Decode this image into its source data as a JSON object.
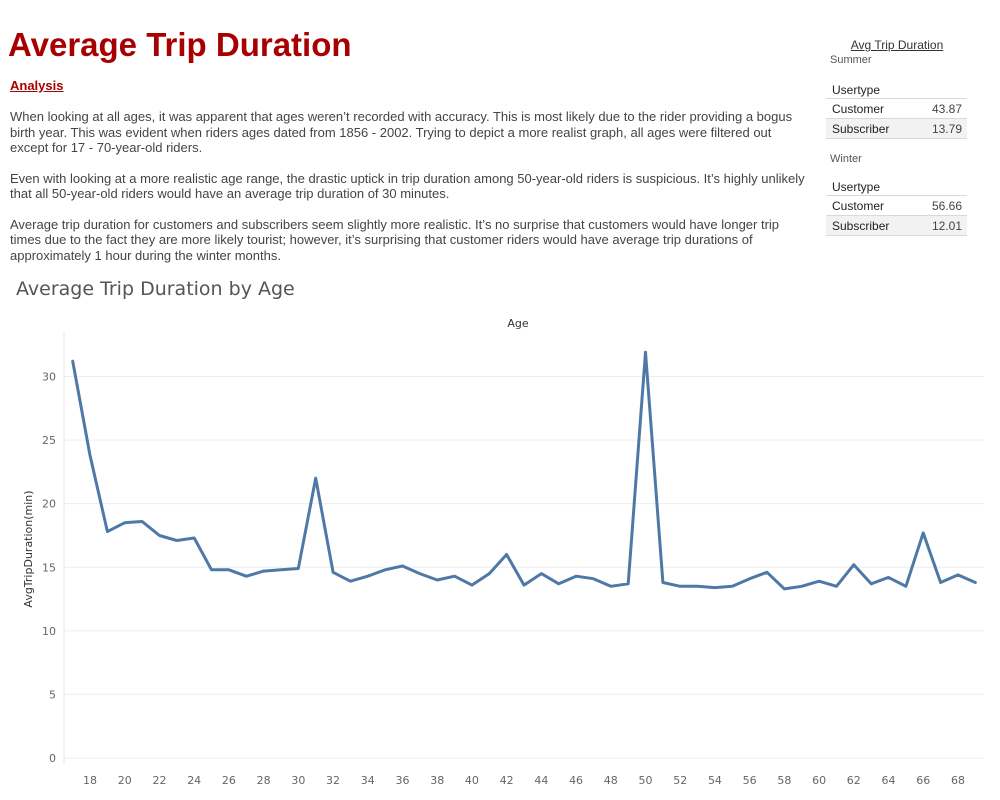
{
  "page": {
    "title": "Average Trip Duration",
    "analysis_heading": "Analysis",
    "paragraphs": [
      "When looking at all ages, it was apparent that ages weren’t recorded with accuracy. This is most likely due to the rider providing a bogus birth year. This was evident when riders ages dated from 1856 - 2002. Trying to depict a more realist graph, all ages were filtered out except for 17 - 70-year-old riders.",
      "Even with looking at a more realistic age range, the drastic uptick in trip duration among 50-year-old riders is suspicious. It’s highly unlikely that all 50-year-old riders would have an average trip duration of 30 minutes.",
      "Average trip duration for customers and subscribers seem slightly more realistic.  It’s no surprise that customers would have longer trip times due to the fact they are more likely tourist; however, it’s surprising that customer riders would have average trip durations of approximately 1 hour during the winter months."
    ]
  },
  "summary": {
    "title": "Avg Trip Duration",
    "summer": {
      "label": "Summer",
      "header": "Usertype",
      "rows": [
        {
          "label": "Customer",
          "value": "43.87"
        },
        {
          "label": "Subscriber",
          "value": "13.79"
        }
      ]
    },
    "winter": {
      "label": "Winter",
      "header": "Usertype",
      "rows": [
        {
          "label": "Customer",
          "value": "56.66"
        },
        {
          "label": "Subscriber",
          "value": "12.01"
        }
      ]
    }
  },
  "chart_data": {
    "type": "line",
    "title": "Average Trip Duration by Age",
    "xlabel": "Age",
    "ylabel": "AvgTripDuration(min)",
    "x": [
      17,
      18,
      19,
      20,
      21,
      22,
      23,
      24,
      25,
      26,
      27,
      28,
      29,
      30,
      31,
      32,
      33,
      34,
      35,
      36,
      37,
      38,
      39,
      40,
      41,
      42,
      43,
      44,
      45,
      46,
      47,
      48,
      49,
      50,
      51,
      52,
      53,
      54,
      55,
      56,
      57,
      58,
      59,
      60,
      61,
      62,
      63,
      64,
      65,
      66,
      67,
      68,
      69
    ],
    "series": [
      {
        "values": [
          31.2,
          23.8,
          17.8,
          18.5,
          18.6,
          17.5,
          17.1,
          17.3,
          14.8,
          14.8,
          14.3,
          14.7,
          14.8,
          14.9,
          22.0,
          14.6,
          13.9,
          14.3,
          14.8,
          15.1,
          14.5,
          14.0,
          14.3,
          13.6,
          14.5,
          16.0,
          13.6,
          14.5,
          13.7,
          14.3,
          14.1,
          13.5,
          13.7,
          31.9,
          13.8,
          13.5,
          13.5,
          13.4,
          13.5,
          14.1,
          14.6,
          13.3,
          13.5,
          13.9,
          13.5,
          15.2,
          13.7,
          14.2,
          13.5,
          17.7,
          13.8,
          14.4,
          13.8
        ]
      }
    ],
    "xticks": [
      18,
      20,
      22,
      24,
      26,
      28,
      30,
      32,
      34,
      36,
      38,
      40,
      42,
      44,
      46,
      48,
      50,
      52,
      54,
      56,
      58,
      60,
      62,
      64,
      66,
      68
    ],
    "yticks": [
      0,
      5,
      10,
      15,
      20,
      25,
      30
    ],
    "xlim": [
      16.5,
      69.5
    ],
    "ylim": [
      0,
      33.5
    ],
    "grid": true,
    "line_color": "#4e79a7"
  }
}
